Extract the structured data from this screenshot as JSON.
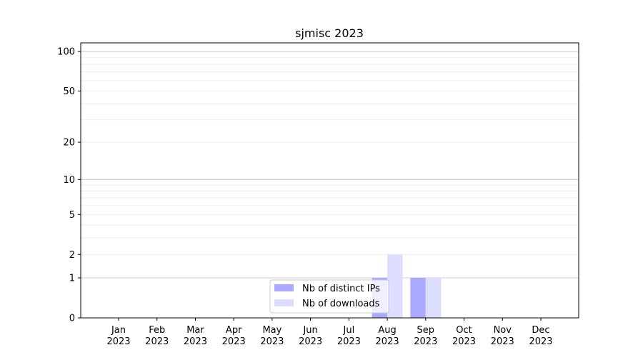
{
  "chart_data": {
    "type": "bar",
    "title": "sjmisc 2023",
    "xlabel": "",
    "ylabel": "",
    "y_scale": "log(1+y)",
    "ylim": [
      0,
      117
    ],
    "y_ticks": [
      0,
      1,
      2,
      5,
      10,
      20,
      50,
      100
    ],
    "y_tick_labels": [
      "0",
      "1",
      "2",
      "5",
      "10",
      "20",
      "50",
      "100"
    ],
    "grid": {
      "major": [
        1,
        10,
        100
      ],
      "minor": [
        2,
        3,
        4,
        5,
        6,
        7,
        8,
        9,
        20,
        30,
        40,
        50,
        60,
        70,
        80,
        90
      ]
    },
    "categories": [
      "Jan\n2023",
      "Feb\n2023",
      "Mar\n2023",
      "Apr\n2023",
      "May\n2023",
      "Jun\n2023",
      "Jul\n2023",
      "Aug\n2023",
      "Sep\n2023",
      "Oct\n2023",
      "Nov\n2023",
      "Dec\n2023"
    ],
    "category_lines": [
      [
        "Jan",
        "2023"
      ],
      [
        "Feb",
        "2023"
      ],
      [
        "Mar",
        "2023"
      ],
      [
        "Apr",
        "2023"
      ],
      [
        "May",
        "2023"
      ],
      [
        "Jun",
        "2023"
      ],
      [
        "Jul",
        "2023"
      ],
      [
        "Aug",
        "2023"
      ],
      [
        "Sep",
        "2023"
      ],
      [
        "Oct",
        "2023"
      ],
      [
        "Nov",
        "2023"
      ],
      [
        "Dec",
        "2023"
      ]
    ],
    "series": [
      {
        "name": "Nb of distinct IPs",
        "color": "#aaaaff",
        "values": [
          0,
          0,
          0,
          0,
          0,
          0,
          0,
          1,
          1,
          0,
          0,
          0
        ]
      },
      {
        "name": "Nb of downloads",
        "color": "#ddddff",
        "values": [
          0,
          0,
          0,
          0,
          0,
          0,
          0,
          2,
          1,
          0,
          0,
          0
        ]
      }
    ],
    "legend": "lower-center"
  }
}
